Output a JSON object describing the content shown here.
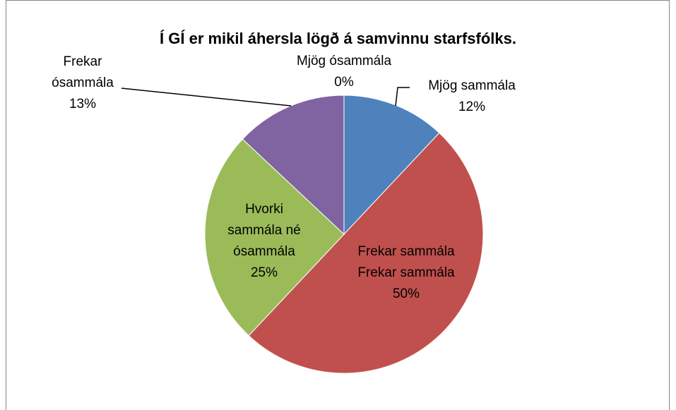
{
  "chart_data": {
    "type": "pie",
    "title": "Í GÍ er mikil áhersla lögð á samvinnu starfsfólks.",
    "categories": [
      "Mjög sammála",
      "Frekar sammála",
      "Hvorki sammála né ósammála",
      "Frekar ósammála",
      "Mjög ósammála"
    ],
    "values": [
      12,
      50,
      25,
      13,
      0
    ],
    "value_labels": [
      "12%",
      "50%",
      "25%",
      "13%",
      "0%"
    ],
    "colors": [
      "#4f81bd",
      "#c0504d",
      "#9bbb59",
      "#8064a2",
      "#4bacc6"
    ]
  }
}
